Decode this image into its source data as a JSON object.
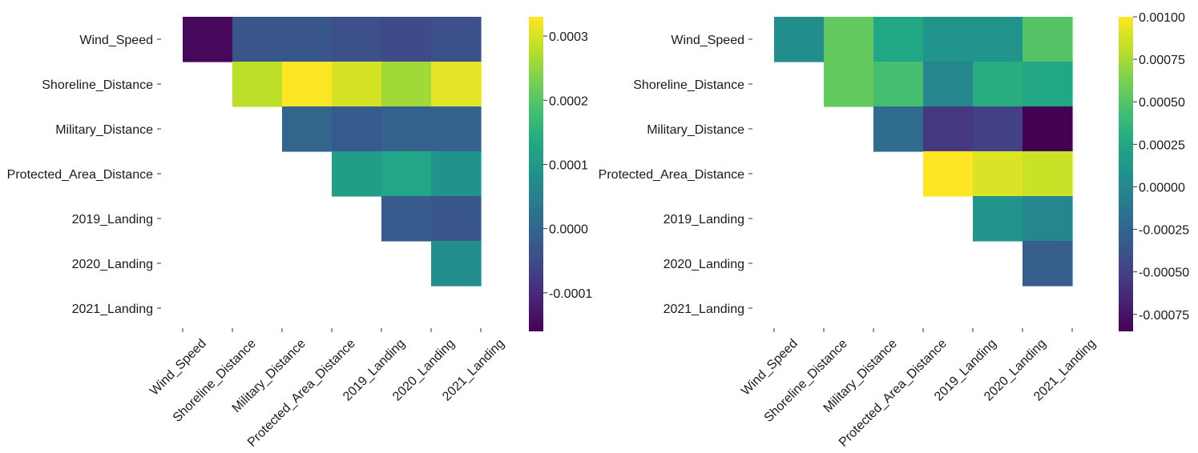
{
  "chart_data": [
    {
      "type": "heatmap",
      "title": "",
      "xlabel": "",
      "ylabel": "",
      "rows": [
        "Wind_Speed",
        "Shoreline_Distance",
        "Military_Distance",
        "Protected_Area_Distance",
        "2019_Landing",
        "2020_Landing",
        "2021_Landing"
      ],
      "columns": [
        "Wind_Speed",
        "Shoreline_Distance",
        "Military_Distance",
        "Protected_Area_Distance",
        "2019_Landing",
        "2020_Landing",
        "2021_Landing"
      ],
      "values": [
        [
          -0.00015,
          -3e-05,
          -3e-05,
          -4e-05,
          -5e-05,
          -4e-05,
          null
        ],
        [
          null,
          0.00028,
          0.00033,
          0.0003,
          0.00026,
          0.00031,
          null
        ],
        [
          null,
          null,
          0.0,
          -2e-05,
          -1e-05,
          -1e-05,
          null
        ],
        [
          null,
          null,
          null,
          0.00011,
          0.00013,
          9e-05,
          null
        ],
        [
          null,
          null,
          null,
          null,
          -2e-05,
          -3e-05,
          null
        ],
        [
          null,
          null,
          null,
          null,
          null,
          8e-05,
          null
        ],
        [
          null,
          null,
          null,
          null,
          null,
          null,
          null
        ]
      ],
      "colorbar": {
        "range": [
          -0.00016,
          0.00033
        ],
        "ticks": [
          0.0003,
          0.0002,
          0.0001,
          0.0,
          -0.0001
        ],
        "tick_labels": [
          "0.0003",
          "0.0002",
          "0.0001",
          "0.0000",
          "-0.0001"
        ]
      },
      "colormap": "viridis"
    },
    {
      "type": "heatmap",
      "title": "",
      "xlabel": "",
      "ylabel": "",
      "rows": [
        "Wind_Speed",
        "Shoreline_Distance",
        "Military_Distance",
        "Protected_Area_Distance",
        "2019_Landing",
        "2020_Landing",
        "2021_Landing"
      ],
      "columns": [
        "Wind_Speed",
        "Shoreline_Distance",
        "Military_Distance",
        "Protected_Area_Distance",
        "2019_Landing",
        "2020_Landing",
        "2021_Landing"
      ],
      "values": [
        [
          5e-05,
          0.00055,
          0.00025,
          0.0001,
          0.0001,
          0.0005,
          null
        ],
        [
          null,
          0.00055,
          0.00045,
          0.0,
          0.0003,
          0.00025,
          null
        ],
        [
          null,
          null,
          -0.0002,
          -0.00055,
          -0.0005,
          -0.00085,
          null
        ],
        [
          null,
          null,
          null,
          0.001,
          0.0009,
          0.00085,
          null
        ],
        [
          null,
          null,
          null,
          null,
          0.0001,
          0.0,
          null
        ],
        [
          null,
          null,
          null,
          null,
          null,
          -0.0003,
          null
        ],
        [
          null,
          null,
          null,
          null,
          null,
          null,
          null
        ]
      ],
      "colorbar": {
        "range": [
          -0.00085,
          0.001
        ],
        "ticks": [
          0.001,
          0.00075,
          0.0005,
          0.00025,
          0.0,
          -0.00025,
          -0.0005,
          -0.00075
        ],
        "tick_labels": [
          "0.00100",
          "0.00075",
          "0.00050",
          "0.00025",
          "0.00000",
          "-0.00025",
          "-0.00050",
          "-0.00075"
        ]
      },
      "colormap": "viridis"
    }
  ]
}
